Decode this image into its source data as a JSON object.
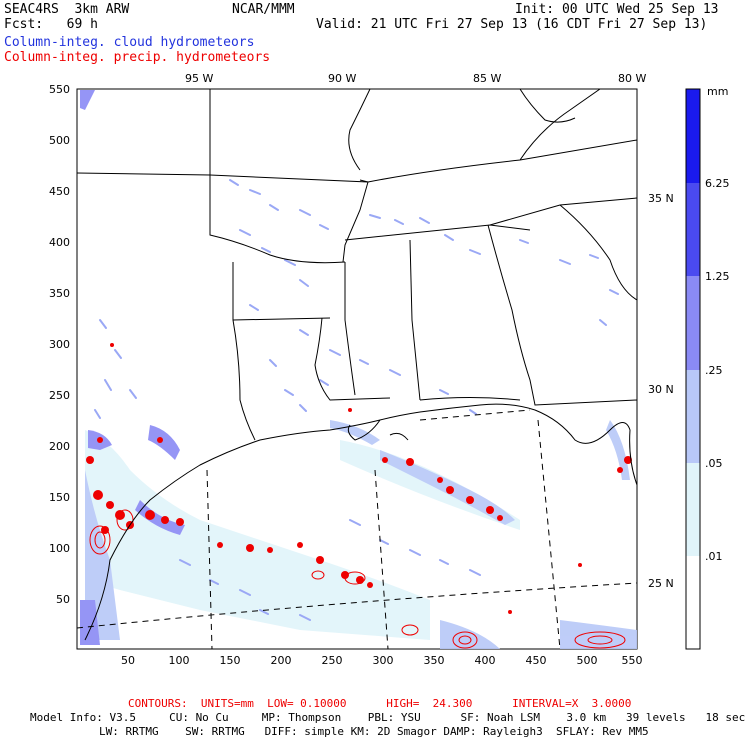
{
  "header": {
    "model": "SEAC4RS  3km ARW",
    "org": "NCAR/MMM",
    "init": "Init: 00 UTC Wed 25 Sep 13",
    "fcst": "Fcst:   69 h",
    "valid": "Valid: 21 UTC Fri 27 Sep 13 (16 CDT Fri 27 Sep 13)",
    "field_cloud": "Column-integ. cloud hydrometeors",
    "field_precip": "Column-integ. precip. hydrometeors"
  },
  "lon_labels": [
    "95 W",
    "90 W",
    "85 W",
    "80 W"
  ],
  "lat_labels": [
    "35 N",
    "30 N",
    "25 N"
  ],
  "x_ticks": [
    "50",
    "100",
    "150",
    "200",
    "250",
    "300",
    "350",
    "400",
    "450",
    "500",
    "550"
  ],
  "y_ticks": [
    "550",
    "500",
    "450",
    "400",
    "350",
    "300",
    "250",
    "200",
    "150",
    "100",
    "50"
  ],
  "colorbar": {
    "unit": "mm",
    "labels": [
      "6.25",
      "1.25",
      ".25",
      ".05",
      ".01"
    ],
    "colors": [
      "#1a1aee",
      "#4a4af0",
      "#8a8af5",
      "#b8c8f8",
      "#e0f4fa",
      "#ffffff"
    ]
  },
  "footer": {
    "contours": "CONTOURS:  UNITS=mm  LOW= 0.10000      HIGH=  24.300      INTERVAL=X  3.0000",
    "model_info_1": "Model Info: V3.5     CU: No Cu     MP: Thompson    PBL: YSU      SF: Noah LSM    3.0 km   39 levels   18 sec",
    "model_info_2": "LW: RRTMG    SW: RRTMG   DIFF: simple KM: 2D Smagor DAMP: Rayleigh3  SFLAY: Rev MM5"
  }
}
